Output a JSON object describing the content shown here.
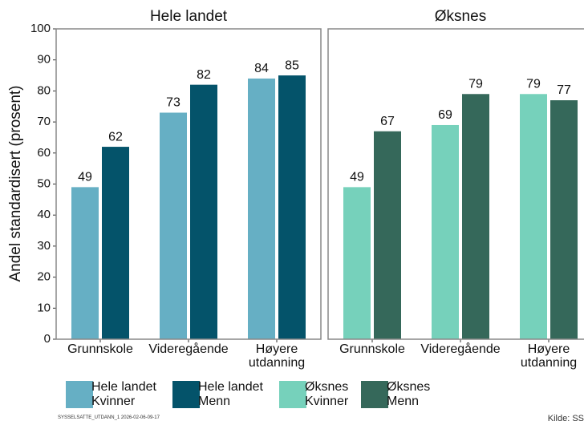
{
  "chart_data": [
    {
      "type": "bar",
      "title": "Hele landet",
      "ylabel": "Andel standardisert (prosent)",
      "categories": [
        "Grunnskole",
        "Videregående",
        "Høyere\nutdanning"
      ],
      "series": [
        {
          "name": "Hele landet\nKvinner",
          "color": "#66afc4",
          "values": [
            49,
            73,
            84
          ]
        },
        {
          "name": "Hele landet\nMenn",
          "color": "#04536a",
          "values": [
            62,
            82,
            85
          ]
        }
      ],
      "ylim": [
        0,
        100
      ],
      "yticks": [
        0,
        10,
        20,
        30,
        40,
        50,
        60,
        70,
        80,
        90,
        100
      ]
    },
    {
      "type": "bar",
      "title": "Øksnes",
      "categories": [
        "Grunnskole",
        "Videregående",
        "Høyere\nutdanning"
      ],
      "series": [
        {
          "name": "Øksnes\nKvinner",
          "color": "#76d1bb",
          "values": [
            49,
            69,
            79
          ]
        },
        {
          "name": "Øksnes\nMenn",
          "color": "#35685a",
          "values": [
            67,
            79,
            77
          ]
        }
      ],
      "ylim": [
        0,
        100
      ]
    }
  ],
  "footer": {
    "code": "SYSSELSATTE_UTDANN_1 2026-02-06-09-17",
    "source": "Kilde: SS"
  }
}
